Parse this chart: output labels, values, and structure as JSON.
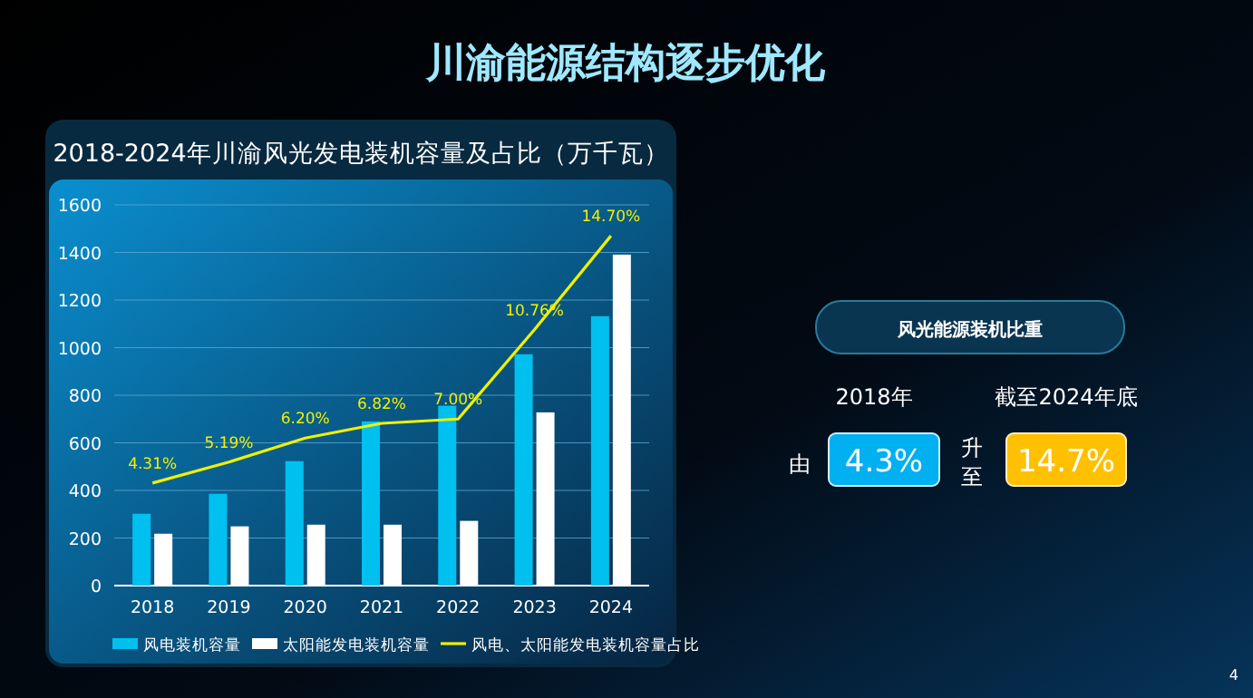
{
  "chart_data": {
    "type": "bar",
    "title": "川渝能源结构逐步优化",
    "subtitle": "2018-2024年川渝风光发电装机容量及占比（万千瓦）",
    "categories": [
      "2018",
      "2019",
      "2020",
      "2021",
      "2022",
      "2023",
      "2024"
    ],
    "series": [
      {
        "name": "风电装机容量",
        "color": "#00c0f0",
        "values": [
          302,
          386,
          523,
          690,
          756,
          972,
          1132
        ]
      },
      {
        "name": "太阳能发电装机容量",
        "color": "#ffffff",
        "values": [
          218,
          249,
          256,
          256,
          272,
          728,
          1391
        ]
      },
      {
        "name": "风电、太阳能发电装机容量占比",
        "type": "line",
        "axis": "y2",
        "color": "#f0f000",
        "values": [
          4.31,
          5.19,
          6.2,
          6.82,
          7.0,
          10.76,
          14.7
        ],
        "value_labels": [
          "4.31%",
          "5.19%",
          "6.20%",
          "6.82%",
          "7.00%",
          "10.76%",
          "14.70%"
        ]
      }
    ],
    "ylim": [
      0,
      1600
    ],
    "yticks": [
      0,
      200,
      400,
      600,
      800,
      1000,
      1200,
      1400,
      1600
    ],
    "y2lim": [
      0,
      16
    ],
    "grid": "y",
    "legend": "bottom",
    "annotations": [
      "风光能源装机比重",
      "2018年",
      "截至2024年底",
      "由",
      "4.3%",
      "升至",
      "14.7%",
      "4"
    ]
  }
}
